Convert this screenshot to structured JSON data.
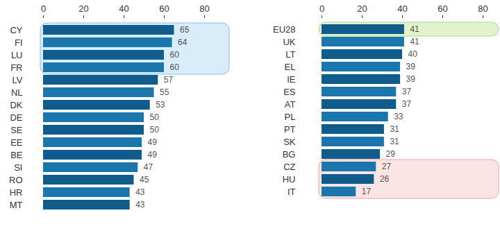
{
  "chart_data": [
    {
      "type": "bar",
      "orientation": "horizontal",
      "categories": [
        "CY",
        "FI",
        "LU",
        "FR",
        "LV",
        "NL",
        "DK",
        "DE",
        "SE",
        "EE",
        "BE",
        "SI",
        "RO",
        "HR",
        "MT"
      ],
      "values": [
        65,
        64,
        60,
        60,
        57,
        55,
        53,
        50,
        50,
        49,
        49,
        47,
        45,
        43,
        43
      ],
      "colors": [
        "#105d8d",
        "#1b76ad",
        "#105d8d",
        "#1b76ad",
        "#105d8d",
        "#1b76ad",
        "#105d8d",
        "#1b76ad",
        "#105d8d",
        "#1b76ad",
        "#105d8d",
        "#1b76ad",
        "#105d8d",
        "#1b76ad",
        "#105d8d"
      ],
      "xlim": [
        0,
        80
      ],
      "xticks": [
        0,
        20,
        40,
        60,
        80
      ],
      "data_labels": true
    },
    {
      "type": "bar",
      "orientation": "horizontal",
      "categories": [
        "EU28",
        "UK",
        "LT",
        "EL",
        "IE",
        "ES",
        "AT",
        "PL",
        "PT",
        "SK",
        "BG",
        "CZ",
        "HU",
        "IT"
      ],
      "values": [
        41,
        41,
        40,
        39,
        39,
        37,
        37,
        33,
        31,
        31,
        29,
        27,
        26,
        17
      ],
      "colors": [
        "#105d8d",
        "#1b76ad",
        "#105d8d",
        "#1b76ad",
        "#105d8d",
        "#1b76ad",
        "#105d8d",
        "#1b76ad",
        "#105d8d",
        "#1b76ad",
        "#105d8d",
        "#1b76ad",
        "#105d8d",
        "#1b76ad"
      ],
      "xlim": [
        0,
        80
      ],
      "xticks": [
        0,
        20,
        40,
        60,
        80
      ],
      "data_labels": true
    }
  ]
}
